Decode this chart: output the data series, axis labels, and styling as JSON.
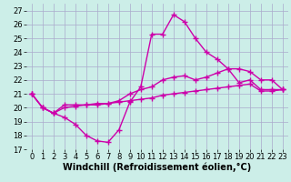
{
  "xlabel": "Windchill (Refroidissement éolien,°C)",
  "xlim": [
    -0.5,
    23.5
  ],
  "ylim": [
    17,
    27.5
  ],
  "yticks": [
    17,
    18,
    19,
    20,
    21,
    22,
    23,
    24,
    25,
    26,
    27
  ],
  "xticks": [
    0,
    1,
    2,
    3,
    4,
    5,
    6,
    7,
    8,
    9,
    10,
    11,
    12,
    13,
    14,
    15,
    16,
    17,
    18,
    19,
    20,
    21,
    22,
    23
  ],
  "background_color": "#cceee8",
  "grid_color": "#aaaacc",
  "line_color": "#cc00aa",
  "line1_x": [
    0,
    1,
    2,
    3,
    4,
    5,
    6,
    7,
    8,
    9,
    10,
    11,
    12,
    13,
    14,
    15,
    16,
    17,
    18,
    19,
    20,
    21,
    22,
    23
  ],
  "line1_y": [
    21.0,
    20.0,
    19.6,
    19.3,
    18.8,
    18.0,
    17.6,
    17.5,
    18.4,
    20.4,
    21.5,
    25.3,
    25.3,
    26.7,
    26.2,
    25.0,
    24.0,
    23.5,
    22.8,
    21.8,
    22.0,
    21.3,
    21.3,
    21.3
  ],
  "line2_x": [
    0,
    1,
    2,
    3,
    4,
    5,
    6,
    7,
    8,
    9,
    10,
    11,
    12,
    13,
    14,
    15,
    16,
    17,
    18,
    19,
    20,
    21,
    22,
    23
  ],
  "line2_y": [
    21.0,
    20.0,
    19.6,
    20.2,
    20.2,
    20.2,
    20.3,
    20.3,
    20.5,
    21.0,
    21.3,
    21.5,
    22.0,
    22.2,
    22.3,
    22.0,
    22.2,
    22.5,
    22.8,
    22.8,
    22.6,
    22.0,
    22.0,
    21.3
  ],
  "line3_x": [
    0,
    1,
    2,
    3,
    4,
    5,
    6,
    7,
    8,
    9,
    10,
    11,
    12,
    13,
    14,
    15,
    16,
    17,
    18,
    19,
    20,
    21,
    22,
    23
  ],
  "line3_y": [
    21.0,
    20.0,
    19.6,
    20.0,
    20.1,
    20.2,
    20.2,
    20.3,
    20.4,
    20.5,
    20.6,
    20.7,
    20.9,
    21.0,
    21.1,
    21.2,
    21.3,
    21.4,
    21.5,
    21.6,
    21.7,
    21.2,
    21.2,
    21.3
  ],
  "marker": "+",
  "markersize": 4,
  "markeredgewidth": 1.0,
  "linewidth": 1.0,
  "tick_labelsize": 6,
  "xlabel_fontsize": 7
}
